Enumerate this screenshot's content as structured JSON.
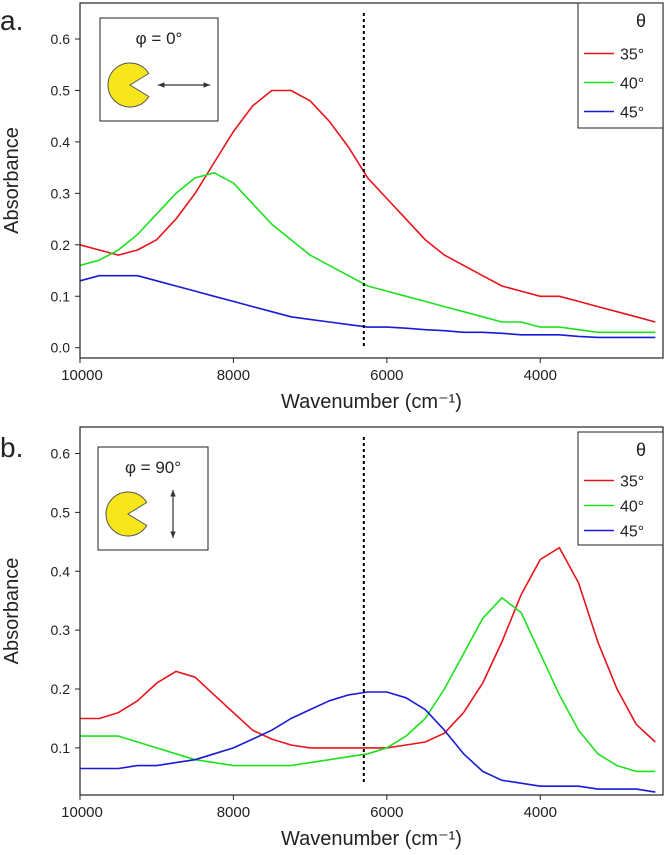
{
  "chart_data": [
    {
      "type": "line",
      "panel_label": "a.",
      "inset_text": "φ = 0°",
      "legend_title": "θ",
      "xlabel": "Wavenumber (cm⁻¹)",
      "ylabel": "Absorbance",
      "xlim": [
        10000,
        2400
      ],
      "ylim": [
        -0.02,
        0.67
      ],
      "xticks": [
        10000,
        8000,
        6000,
        4000
      ],
      "yticks": [
        {
          "value": 0,
          "label": "0.0"
        },
        0.1,
        0.2,
        0.3,
        0.4,
        0.5,
        0.6
      ],
      "dashed_line_x": 6300,
      "x": [
        10000,
        9750,
        9500,
        9250,
        9000,
        8750,
        8500,
        8250,
        8000,
        7750,
        7500,
        7250,
        7000,
        6750,
        6500,
        6250,
        6000,
        5750,
        5500,
        5250,
        5000,
        4750,
        4500,
        4250,
        4000,
        3750,
        3500,
        3250,
        3000,
        2750,
        2500
      ],
      "series": [
        {
          "name": "35°",
          "color": "#e8141b",
          "values": [
            0.2,
            0.19,
            0.18,
            0.19,
            0.21,
            0.25,
            0.3,
            0.36,
            0.42,
            0.47,
            0.5,
            0.5,
            0.48,
            0.44,
            0.39,
            0.33,
            0.29,
            0.25,
            0.21,
            0.18,
            0.16,
            0.14,
            0.12,
            0.11,
            0.1,
            0.1,
            0.09,
            0.08,
            0.07,
            0.06,
            0.05
          ]
        },
        {
          "name": "40°",
          "color": "#1ee01e",
          "values": [
            0.16,
            0.17,
            0.19,
            0.22,
            0.26,
            0.3,
            0.33,
            0.34,
            0.32,
            0.28,
            0.24,
            0.21,
            0.18,
            0.16,
            0.14,
            0.12,
            0.11,
            0.1,
            0.09,
            0.08,
            0.07,
            0.06,
            0.05,
            0.05,
            0.04,
            0.04,
            0.035,
            0.03,
            0.03,
            0.03,
            0.03
          ]
        },
        {
          "name": "45°",
          "color": "#1a1ad6",
          "values": [
            0.13,
            0.14,
            0.14,
            0.14,
            0.13,
            0.12,
            0.11,
            0.1,
            0.09,
            0.08,
            0.07,
            0.06,
            0.055,
            0.05,
            0.045,
            0.04,
            0.04,
            0.038,
            0.035,
            0.033,
            0.03,
            0.03,
            0.028,
            0.025,
            0.025,
            0.025,
            0.022,
            0.02,
            0.02,
            0.02,
            0.02
          ]
        }
      ]
    },
    {
      "type": "line",
      "panel_label": "b.",
      "inset_text": "φ = 90°",
      "legend_title": "θ",
      "xlabel": "Wavenumber (cm⁻¹)",
      "ylabel": "Absorbance",
      "xlim": [
        10000,
        2400
      ],
      "ylim": [
        0.02,
        0.645
      ],
      "xticks": [
        10000,
        8000,
        6000,
        4000
      ],
      "yticks": [
        0.1,
        0.2,
        0.3,
        0.4,
        0.5,
        0.6
      ],
      "dashed_line_x": 6300,
      "x": [
        10000,
        9750,
        9500,
        9250,
        9000,
        8750,
        8500,
        8250,
        8000,
        7750,
        7500,
        7250,
        7000,
        6750,
        6500,
        6250,
        6000,
        5750,
        5500,
        5250,
        5000,
        4750,
        4500,
        4250,
        4000,
        3750,
        3500,
        3250,
        3000,
        2750,
        2500
      ],
      "series": [
        {
          "name": "35°",
          "color": "#e8141b",
          "values": [
            0.15,
            0.15,
            0.16,
            0.18,
            0.21,
            0.23,
            0.22,
            0.19,
            0.16,
            0.13,
            0.115,
            0.105,
            0.1,
            0.1,
            0.1,
            0.1,
            0.1,
            0.105,
            0.11,
            0.125,
            0.16,
            0.21,
            0.28,
            0.36,
            0.42,
            0.44,
            0.38,
            0.28,
            0.2,
            0.14,
            0.11
          ]
        },
        {
          "name": "40°",
          "color": "#1ee01e",
          "values": [
            0.12,
            0.12,
            0.12,
            0.11,
            0.1,
            0.09,
            0.08,
            0.075,
            0.07,
            0.07,
            0.07,
            0.07,
            0.075,
            0.08,
            0.085,
            0.09,
            0.1,
            0.12,
            0.15,
            0.2,
            0.26,
            0.32,
            0.355,
            0.33,
            0.26,
            0.19,
            0.13,
            0.09,
            0.07,
            0.06,
            0.06
          ]
        },
        {
          "name": "45°",
          "color": "#1a1ad6",
          "values": [
            0.065,
            0.065,
            0.065,
            0.07,
            0.07,
            0.075,
            0.08,
            0.09,
            0.1,
            0.115,
            0.13,
            0.15,
            0.165,
            0.18,
            0.19,
            0.195,
            0.195,
            0.185,
            0.165,
            0.13,
            0.09,
            0.06,
            0.045,
            0.04,
            0.035,
            0.035,
            0.035,
            0.03,
            0.03,
            0.03,
            0.025
          ]
        }
      ]
    }
  ]
}
